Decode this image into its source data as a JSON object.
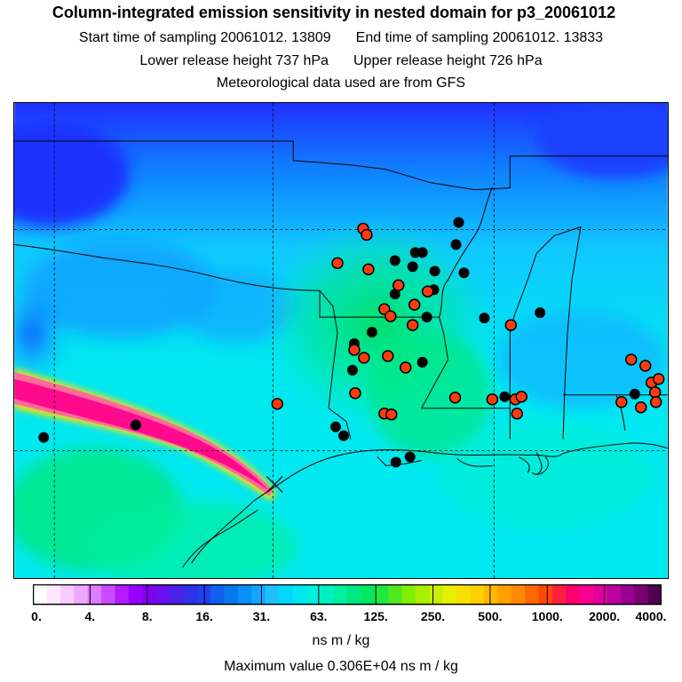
{
  "header": {
    "title": "Column-integrated emission sensitivity in nested domain for p3_20061012",
    "start_label": "Start time of sampling 20061012. 13809",
    "end_label": "End time of sampling 20061012. 13833",
    "lower_label": "Lower release height  737 hPa",
    "upper_label": "Upper release height  726 hPa",
    "met_label": "Meteorological data used are from GFS"
  },
  "colorbar": {
    "unit": "ns m / kg",
    "ticks": [
      "0.",
      "4.",
      "8.",
      "16.",
      "31.",
      "63.",
      "125.",
      "250.",
      "500.",
      "1000.",
      "2000.",
      "4000."
    ],
    "colors": [
      "#ffffff",
      "#ffe8ff",
      "#f9ccff",
      "#f0a8ff",
      "#dc7cff",
      "#c84dff",
      "#b21cff",
      "#9a00ff",
      "#8000f0",
      "#6a10f0",
      "#4a20e8",
      "#3030e8",
      "#2040f0",
      "#1060f0",
      "#0878f0",
      "#0890f8",
      "#10a8ff",
      "#20c0ff",
      "#00d8ff",
      "#00e8f0",
      "#00f0e0",
      "#00f0c0",
      "#00f0a0",
      "#00e880",
      "#00e860",
      "#20e840",
      "#50e820",
      "#80f000",
      "#a8f000",
      "#c8f000",
      "#e8f000",
      "#f8e000",
      "#ffd000",
      "#ffb800",
      "#ffa000",
      "#ff8800",
      "#ff6800",
      "#ff4800",
      "#ff2040",
      "#ff0070",
      "#f80090",
      "#e000a0",
      "#c000a0",
      "#9a0090",
      "#780070",
      "#500050"
    ]
  },
  "max_value_label": "Maximum value  0.306E+04 ns m / kg",
  "map": {
    "colors": {
      "deep": "#1a1cff",
      "blue": "#0a6cff",
      "light_blue": "#1fb0ff",
      "cyan": "#00e8f0",
      "teal": "#00f0c0",
      "green": "#00e66e",
      "plume": "#ff0a8c",
      "plume_edge": "#ff6a9a",
      "yellow": "#f8f000"
    },
    "release_marker": "cross-icon",
    "black_sites": 28,
    "red_sites": 32
  }
}
